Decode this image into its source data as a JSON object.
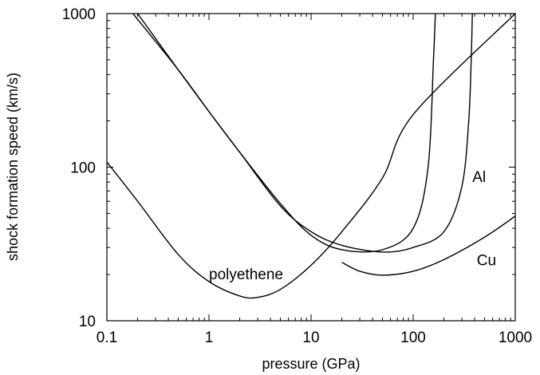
{
  "chart_data": {
    "type": "line",
    "xlabel": "pressure (GPa)",
    "ylabel": "shock formation speed (km/s)",
    "xscale": "log",
    "yscale": "log",
    "xlim": [
      0.1,
      1000
    ],
    "ylim": [
      10,
      1000
    ],
    "grid": false,
    "xticks": [
      "0.1",
      "1",
      "10",
      "100",
      "1000"
    ],
    "yticks": [
      "10",
      "100",
      "1000"
    ],
    "xtick_values": [
      0.1,
      1,
      10,
      100,
      1000
    ],
    "ytick_values": [
      10,
      100,
      1000
    ],
    "series": [
      {
        "name": "polyethene",
        "x": [
          0.1,
          0.2,
          0.5,
          1,
          2,
          3,
          5,
          10,
          20,
          50,
          100,
          1000
        ],
        "y": [
          108,
          60,
          27,
          18,
          14.5,
          14.2,
          16,
          23,
          38,
          85,
          220,
          1000
        ]
      },
      {
        "name": "Al",
        "x": [
          0.18,
          0.5,
          1,
          2,
          5,
          10,
          20,
          50,
          100,
          140,
          158,
          165
        ],
        "y": [
          1000,
          430,
          230,
          125,
          58,
          36,
          29,
          29,
          40,
          100,
          500,
          1000
        ]
      },
      {
        "name": "Cu",
        "x": [
          0.2,
          0.5,
          1,
          2,
          5,
          10,
          20,
          50,
          100,
          200,
          300,
          350,
          370,
          380
        ],
        "y": [
          1000,
          430,
          230,
          125,
          56,
          38,
          31,
          28,
          30,
          38,
          75,
          200,
          500,
          1000
        ]
      },
      {
        "x": [
          20,
          30,
          50,
          100,
          200,
          500,
          1000
        ],
        "y": [
          24,
          21,
          19.8,
          21,
          25,
          35,
          48
        ]
      }
    ],
    "annotations": [
      {
        "text": "polyethene",
        "x": 1,
        "y": 18.6
      },
      {
        "text": "Al",
        "x": 380,
        "y": 80
      },
      {
        "text": "Cu",
        "x": 420,
        "y": 23
      }
    ]
  }
}
